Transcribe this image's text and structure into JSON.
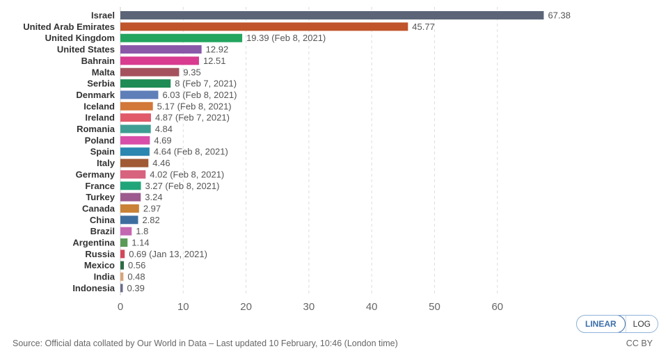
{
  "chart_data": {
    "type": "bar",
    "orientation": "horizontal",
    "xlim": [
      0,
      68
    ],
    "xticks": [
      0,
      10,
      20,
      30,
      40,
      50,
      60
    ],
    "grid": true,
    "bars": [
      {
        "category": "Israel",
        "value": 67.38,
        "label": "67.38",
        "color": "#5b6577"
      },
      {
        "category": "United Arab Emirates",
        "value": 45.77,
        "label": "45.77",
        "color": "#c0542a"
      },
      {
        "category": "United Kingdom",
        "value": 19.39,
        "label": "19.39 (Feb 8, 2021)",
        "color": "#23a55f"
      },
      {
        "category": "United States",
        "value": 12.92,
        "label": "12.92",
        "color": "#8a58a8"
      },
      {
        "category": "Bahrain",
        "value": 12.51,
        "label": "12.51",
        "color": "#d83b8f"
      },
      {
        "category": "Malta",
        "value": 9.35,
        "label": "9.35",
        "color": "#a5525e"
      },
      {
        "category": "Serbia",
        "value": 8,
        "label": "8 (Feb 7, 2021)",
        "color": "#1f8c55"
      },
      {
        "category": "Denmark",
        "value": 6.03,
        "label": "6.03 (Feb 8, 2021)",
        "color": "#5f7fb8"
      },
      {
        "category": "Iceland",
        "value": 5.17,
        "label": "5.17 (Feb 8, 2021)",
        "color": "#d27838"
      },
      {
        "category": "Ireland",
        "value": 4.87,
        "label": "4.87 (Feb 7, 2021)",
        "color": "#e05a6a"
      },
      {
        "category": "Romania",
        "value": 4.84,
        "label": "4.84",
        "color": "#3f9e94"
      },
      {
        "category": "Poland",
        "value": 4.69,
        "label": "4.69",
        "color": "#d84ea8"
      },
      {
        "category": "Spain",
        "value": 4.64,
        "label": "4.64 (Feb 8, 2021)",
        "color": "#2b86b0"
      },
      {
        "category": "Italy",
        "value": 4.46,
        "label": "4.46",
        "color": "#a05a34"
      },
      {
        "category": "Germany",
        "value": 4.02,
        "label": "4.02 (Feb 8, 2021)",
        "color": "#d8637e"
      },
      {
        "category": "France",
        "value": 3.27,
        "label": "3.27 (Feb 8, 2021)",
        "color": "#1fa579"
      },
      {
        "category": "Turkey",
        "value": 3.24,
        "label": "3.24",
        "color": "#9c5a8e"
      },
      {
        "category": "Canada",
        "value": 2.97,
        "label": "2.97",
        "color": "#c98236"
      },
      {
        "category": "China",
        "value": 2.82,
        "label": "2.82",
        "color": "#3e6ea0"
      },
      {
        "category": "Brazil",
        "value": 1.8,
        "label": "1.8",
        "color": "#c468b2"
      },
      {
        "category": "Argentina",
        "value": 1.14,
        "label": "1.14",
        "color": "#5c9a58"
      },
      {
        "category": "Russia",
        "value": 0.69,
        "label": "0.69 (Jan 13, 2021)",
        "color": "#d2485a"
      },
      {
        "category": "Mexico",
        "value": 0.56,
        "label": "0.56",
        "color": "#2e6b44"
      },
      {
        "category": "India",
        "value": 0.48,
        "label": "0.48",
        "color": "#d8a47a"
      },
      {
        "category": "Indonesia",
        "value": 0.39,
        "label": "0.39",
        "color": "#6b6b8a"
      }
    ]
  },
  "controls": {
    "linear_label": "LINEAR",
    "log_label": "LOG"
  },
  "footer": {
    "source": "Source: Official data collated by Our World in Data – Last updated 10 February, 10:46 (London time)",
    "license": "CC BY"
  }
}
